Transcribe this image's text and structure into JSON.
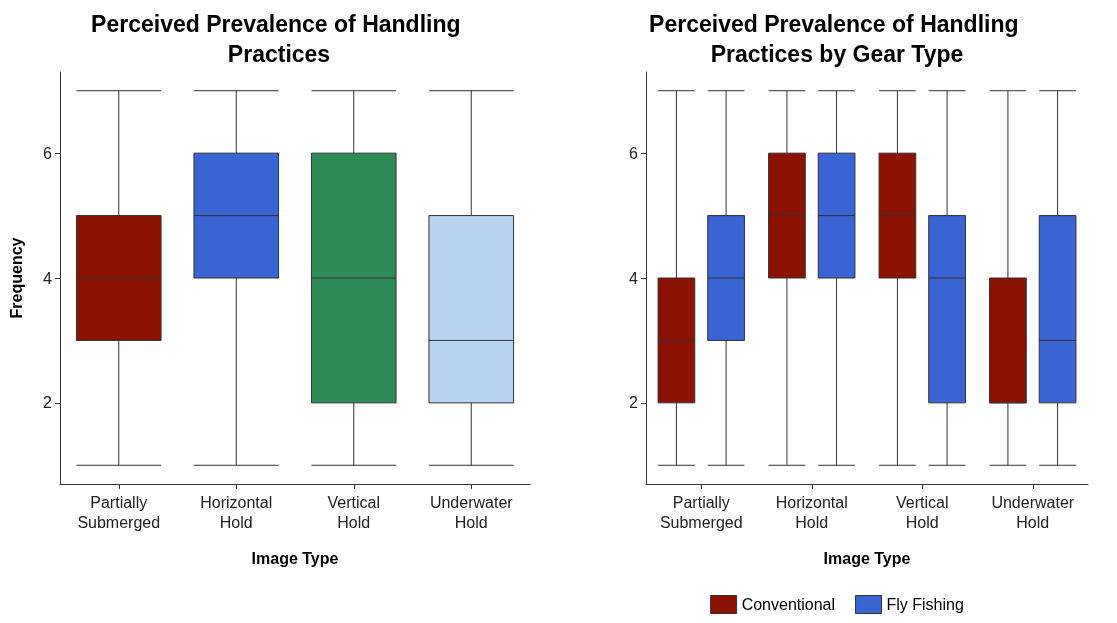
{
  "chart_data": [
    {
      "type": "box",
      "title": "Perceived Prevalence of Handling Practices",
      "xlabel": "Image Type",
      "ylabel": "Frequency",
      "categories": [
        "Partially\nSubmerged",
        "Horizontal\nHold",
        "Vertical\nHold",
        "Underwater\nHold"
      ],
      "boxes": [
        {
          "low": 1,
          "q1": 3,
          "median": 4,
          "q3": 5,
          "high": 7
        },
        {
          "low": 1,
          "q1": 4,
          "median": 5,
          "q3": 6,
          "high": 7
        },
        {
          "low": 1,
          "q1": 2,
          "median": 4,
          "q3": 6,
          "high": 7
        },
        {
          "low": 1,
          "q1": 2,
          "median": 3,
          "q3": 5,
          "high": 7
        }
      ],
      "colors": [
        "#8b1200",
        "#3a63d4",
        "#2e8b57",
        "#b8d3ef"
      ],
      "ylim": [
        0.7,
        7.3
      ],
      "yticks": [
        2,
        4,
        6
      ],
      "grid": false
    },
    {
      "type": "box",
      "title": "Perceived Prevalence of Handling Practices by Gear Type",
      "xlabel": "Image Type",
      "categories": [
        "Partially\nSubmerged",
        "Horizontal\nHold",
        "Vertical\nHold",
        "Underwater\nHold"
      ],
      "series": [
        {
          "name": "Conventional",
          "color": "#8b1200",
          "boxes": [
            {
              "low": 1,
              "q1": 2,
              "median": 3,
              "q3": 4,
              "high": 7
            },
            {
              "low": 1,
              "q1": 4,
              "median": 5,
              "q3": 6,
              "high": 7
            },
            {
              "low": 1,
              "q1": 4,
              "median": 5,
              "q3": 6,
              "high": 7
            },
            {
              "low": 1,
              "q1": 2,
              "median": 2,
              "q3": 4,
              "high": 7
            }
          ]
        },
        {
          "name": "Fly Fishing",
          "color": "#3a63d4",
          "boxes": [
            {
              "low": 1,
              "q1": 3,
              "median": 4,
              "q3": 5,
              "high": 7
            },
            {
              "low": 1,
              "q1": 4,
              "median": 5,
              "q3": 6,
              "high": 7
            },
            {
              "low": 1,
              "q1": 2,
              "median": 4,
              "q3": 5,
              "high": 7
            },
            {
              "low": 1,
              "q1": 2,
              "median": 3,
              "q3": 5,
              "high": 7
            }
          ]
        }
      ],
      "ylim": [
        0.7,
        7.3
      ],
      "yticks": [
        2,
        4,
        6
      ],
      "grid": false,
      "legend": "bottom"
    }
  ]
}
